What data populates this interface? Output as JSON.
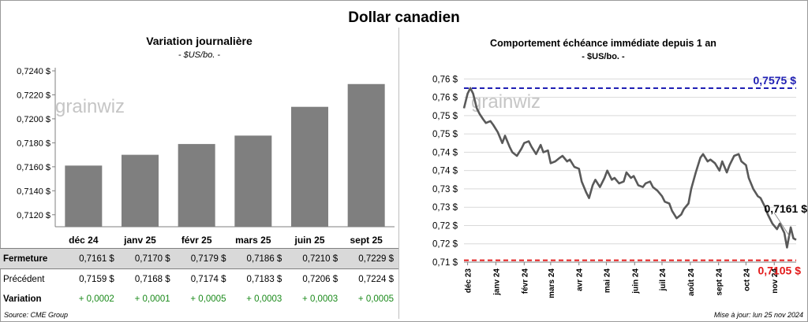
{
  "title": "Dollar canadien",
  "left_panel": {
    "title": "Variation  journalière",
    "subtitle": "- $US/bo. -"
  },
  "right_panel": {
    "title": "Comportement échéance immédiate depuis 1 an",
    "subtitle": "- $US/bo. -"
  },
  "watermark": "grainwiz",
  "table": {
    "rows": [
      {
        "label": "Fermeture",
        "values": [
          "0,7161  $",
          "0,7170  $",
          "0,7179  $",
          "0,7186  $",
          "0,7210  $",
          "0,7229  $"
        ]
      },
      {
        "label": "Précédent",
        "values": [
          "0,7159  $",
          "0,7168  $",
          "0,7174  $",
          "0,7183  $",
          "0,7206  $",
          "0,7224  $"
        ]
      },
      {
        "label": "Variation",
        "values": [
          "+ 0,0002",
          "+ 0,0001",
          "+ 0,0005",
          "+ 0,0003",
          "+ 0,0003",
          "+ 0,0005"
        ]
      }
    ]
  },
  "footer": {
    "source": "Source: CME Group",
    "updated": "Mise à jour: lun 25 nov 2024"
  },
  "colors": {
    "bar": "#7f7f7f",
    "line": "#595959",
    "high": "#1f1fb4",
    "low": "#e31a1a",
    "grid": "#d9d9d9"
  },
  "chart_data": [
    {
      "type": "bar",
      "categories": [
        "déc 24",
        "janv 25",
        "févr 25",
        "mars 25",
        "juin 25",
        "sept 25"
      ],
      "values": [
        0.7161,
        0.717,
        0.7179,
        0.7186,
        0.721,
        0.7229
      ],
      "ylim": [
        0.711,
        0.724
      ],
      "yticks": [
        "0,7120 $",
        "0,7140 $",
        "0,7160 $",
        "0,7180 $",
        "0,7200 $",
        "0,7220 $",
        "0,7240 $"
      ],
      "ytick_values": [
        0.712,
        0.714,
        0.716,
        0.718,
        0.72,
        0.722,
        0.724
      ],
      "grid": false
    },
    {
      "type": "line",
      "ylim": [
        0.71,
        0.762
      ],
      "yticks": [
        "0,71 $",
        "0,72 $",
        "0,72 $",
        "0,73 $",
        "0,73 $",
        "0,74 $",
        "0,74 $",
        "0,75 $",
        "0,75 $",
        "0,76 $",
        "0,76 $"
      ],
      "ytick_values": [
        0.71,
        0.715,
        0.72,
        0.725,
        0.73,
        0.735,
        0.74,
        0.745,
        0.75,
        0.755,
        0.76
      ],
      "xlim": [
        "2023-11-27",
        "2024-11-25"
      ],
      "xticks": [
        "déc 23",
        "janv 24",
        "févr 24",
        "mars 24",
        "avr 24",
        "mai 24",
        "juin 24",
        "juil 24",
        "août 24",
        "sept 24",
        "oct 24",
        "nov 24"
      ],
      "xtick_dates": [
        "2023-12-01",
        "2024-01-01",
        "2024-02-01",
        "2024-03-01",
        "2024-04-01",
        "2024-05-01",
        "2024-06-01",
        "2024-07-01",
        "2024-08-01",
        "2024-09-01",
        "2024-10-01",
        "2024-11-01"
      ],
      "high": {
        "value": 0.7575,
        "label": "0,7575 $"
      },
      "low": {
        "value": 0.7105,
        "label": "0,7105 $"
      },
      "last": {
        "value": 0.7161,
        "label": "0,7161 $"
      },
      "series": [
        {
          "x": [
            "2023-11-27",
            "2023-12-01",
            "2023-12-04",
            "2023-12-07",
            "2023-12-11",
            "2023-12-14",
            "2023-12-18",
            "2023-12-21",
            "2023-12-26",
            "2023-12-29",
            "2024-01-03",
            "2024-01-08",
            "2024-01-11",
            "2024-01-16",
            "2024-01-19",
            "2024-01-24",
            "2024-01-29",
            "2024-02-01",
            "2024-02-06",
            "2024-02-09",
            "2024-02-14",
            "2024-02-19",
            "2024-02-22",
            "2024-02-27",
            "2024-03-01",
            "2024-03-06",
            "2024-03-11",
            "2024-03-14",
            "2024-03-19",
            "2024-03-22",
            "2024-03-27",
            "2024-04-01",
            "2024-04-04",
            "2024-04-09",
            "2024-04-12",
            "2024-04-16",
            "2024-04-19",
            "2024-04-24",
            "2024-04-29",
            "2024-05-02",
            "2024-05-07",
            "2024-05-10",
            "2024-05-15",
            "2024-05-20",
            "2024-05-23",
            "2024-05-28",
            "2024-05-31",
            "2024-06-05",
            "2024-06-10",
            "2024-06-13",
            "2024-06-18",
            "2024-06-21",
            "2024-06-26",
            "2024-07-01",
            "2024-07-04",
            "2024-07-09",
            "2024-07-12",
            "2024-07-17",
            "2024-07-22",
            "2024-07-25",
            "2024-07-30",
            "2024-08-02",
            "2024-08-07",
            "2024-08-12",
            "2024-08-15",
            "2024-08-20",
            "2024-08-23",
            "2024-08-28",
            "2024-09-02",
            "2024-09-05",
            "2024-09-10",
            "2024-09-13",
            "2024-09-18",
            "2024-09-23",
            "2024-09-26",
            "2024-10-01",
            "2024-10-04",
            "2024-10-09",
            "2024-10-14",
            "2024-10-17",
            "2024-10-22",
            "2024-10-25",
            "2024-10-30",
            "2024-11-04",
            "2024-11-07",
            "2024-11-12",
            "2024-11-15",
            "2024-11-19",
            "2024-11-22",
            "2024-11-25"
          ],
          "y": [
            0.752,
            0.756,
            0.7575,
            0.756,
            0.752,
            0.7505,
            0.749,
            0.748,
            0.7485,
            0.7475,
            0.7455,
            0.7425,
            0.7445,
            0.7415,
            0.74,
            0.739,
            0.741,
            0.7425,
            0.743,
            0.7415,
            0.7395,
            0.742,
            0.74,
            0.7405,
            0.737,
            0.7375,
            0.7385,
            0.739,
            0.7375,
            0.738,
            0.736,
            0.7355,
            0.732,
            0.729,
            0.7275,
            0.731,
            0.7325,
            0.7305,
            0.733,
            0.735,
            0.7325,
            0.733,
            0.7315,
            0.732,
            0.7345,
            0.733,
            0.7335,
            0.731,
            0.7305,
            0.7315,
            0.732,
            0.7305,
            0.7295,
            0.728,
            0.7265,
            0.726,
            0.724,
            0.722,
            0.723,
            0.7245,
            0.726,
            0.73,
            0.7345,
            0.7385,
            0.7395,
            0.7375,
            0.738,
            0.737,
            0.735,
            0.7375,
            0.7345,
            0.7365,
            0.739,
            0.7395,
            0.7375,
            0.7365,
            0.733,
            0.73,
            0.728,
            0.7275,
            0.725,
            0.723,
            0.7205,
            0.719,
            0.7205,
            0.718,
            0.714,
            0.7195,
            0.7165,
            0.7161
          ]
        }
      ]
    }
  ]
}
